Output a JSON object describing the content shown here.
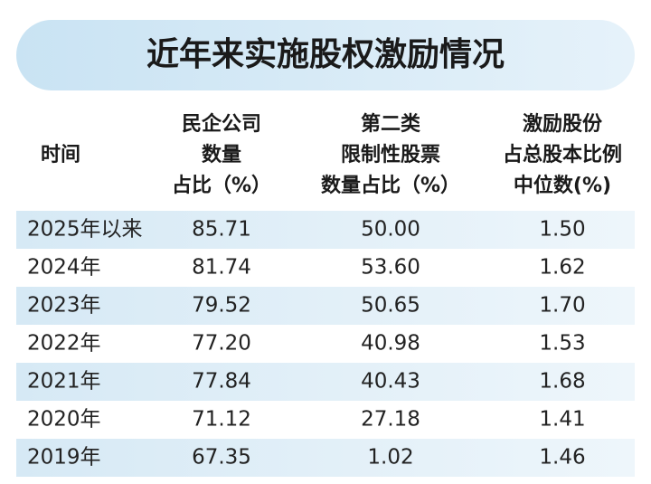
{
  "title": "近年来实施股权激励情况",
  "table": {
    "headers": [
      [
        "时间"
      ],
      [
        "民企公司",
        "数量",
        "占比（%）"
      ],
      [
        "第二类",
        "限制性股票",
        "数量占比（%）"
      ],
      [
        "激励股份",
        "占总股本比例",
        "中位数(%)"
      ]
    ],
    "rows": [
      [
        "2025年以来",
        "85.71",
        "50.00",
        "1.50"
      ],
      [
        "2024年",
        "81.74",
        "53.60",
        "1.62"
      ],
      [
        "2023年",
        "79.52",
        "50.65",
        "1.70"
      ],
      [
        "2022年",
        "77.20",
        "40.98",
        "1.53"
      ],
      [
        "2021年",
        "77.84",
        "40.43",
        "1.68"
      ],
      [
        "2020年",
        "71.12",
        "27.18",
        "1.41"
      ],
      [
        "2019年",
        "67.35",
        "1.02",
        "1.46"
      ]
    ]
  }
}
